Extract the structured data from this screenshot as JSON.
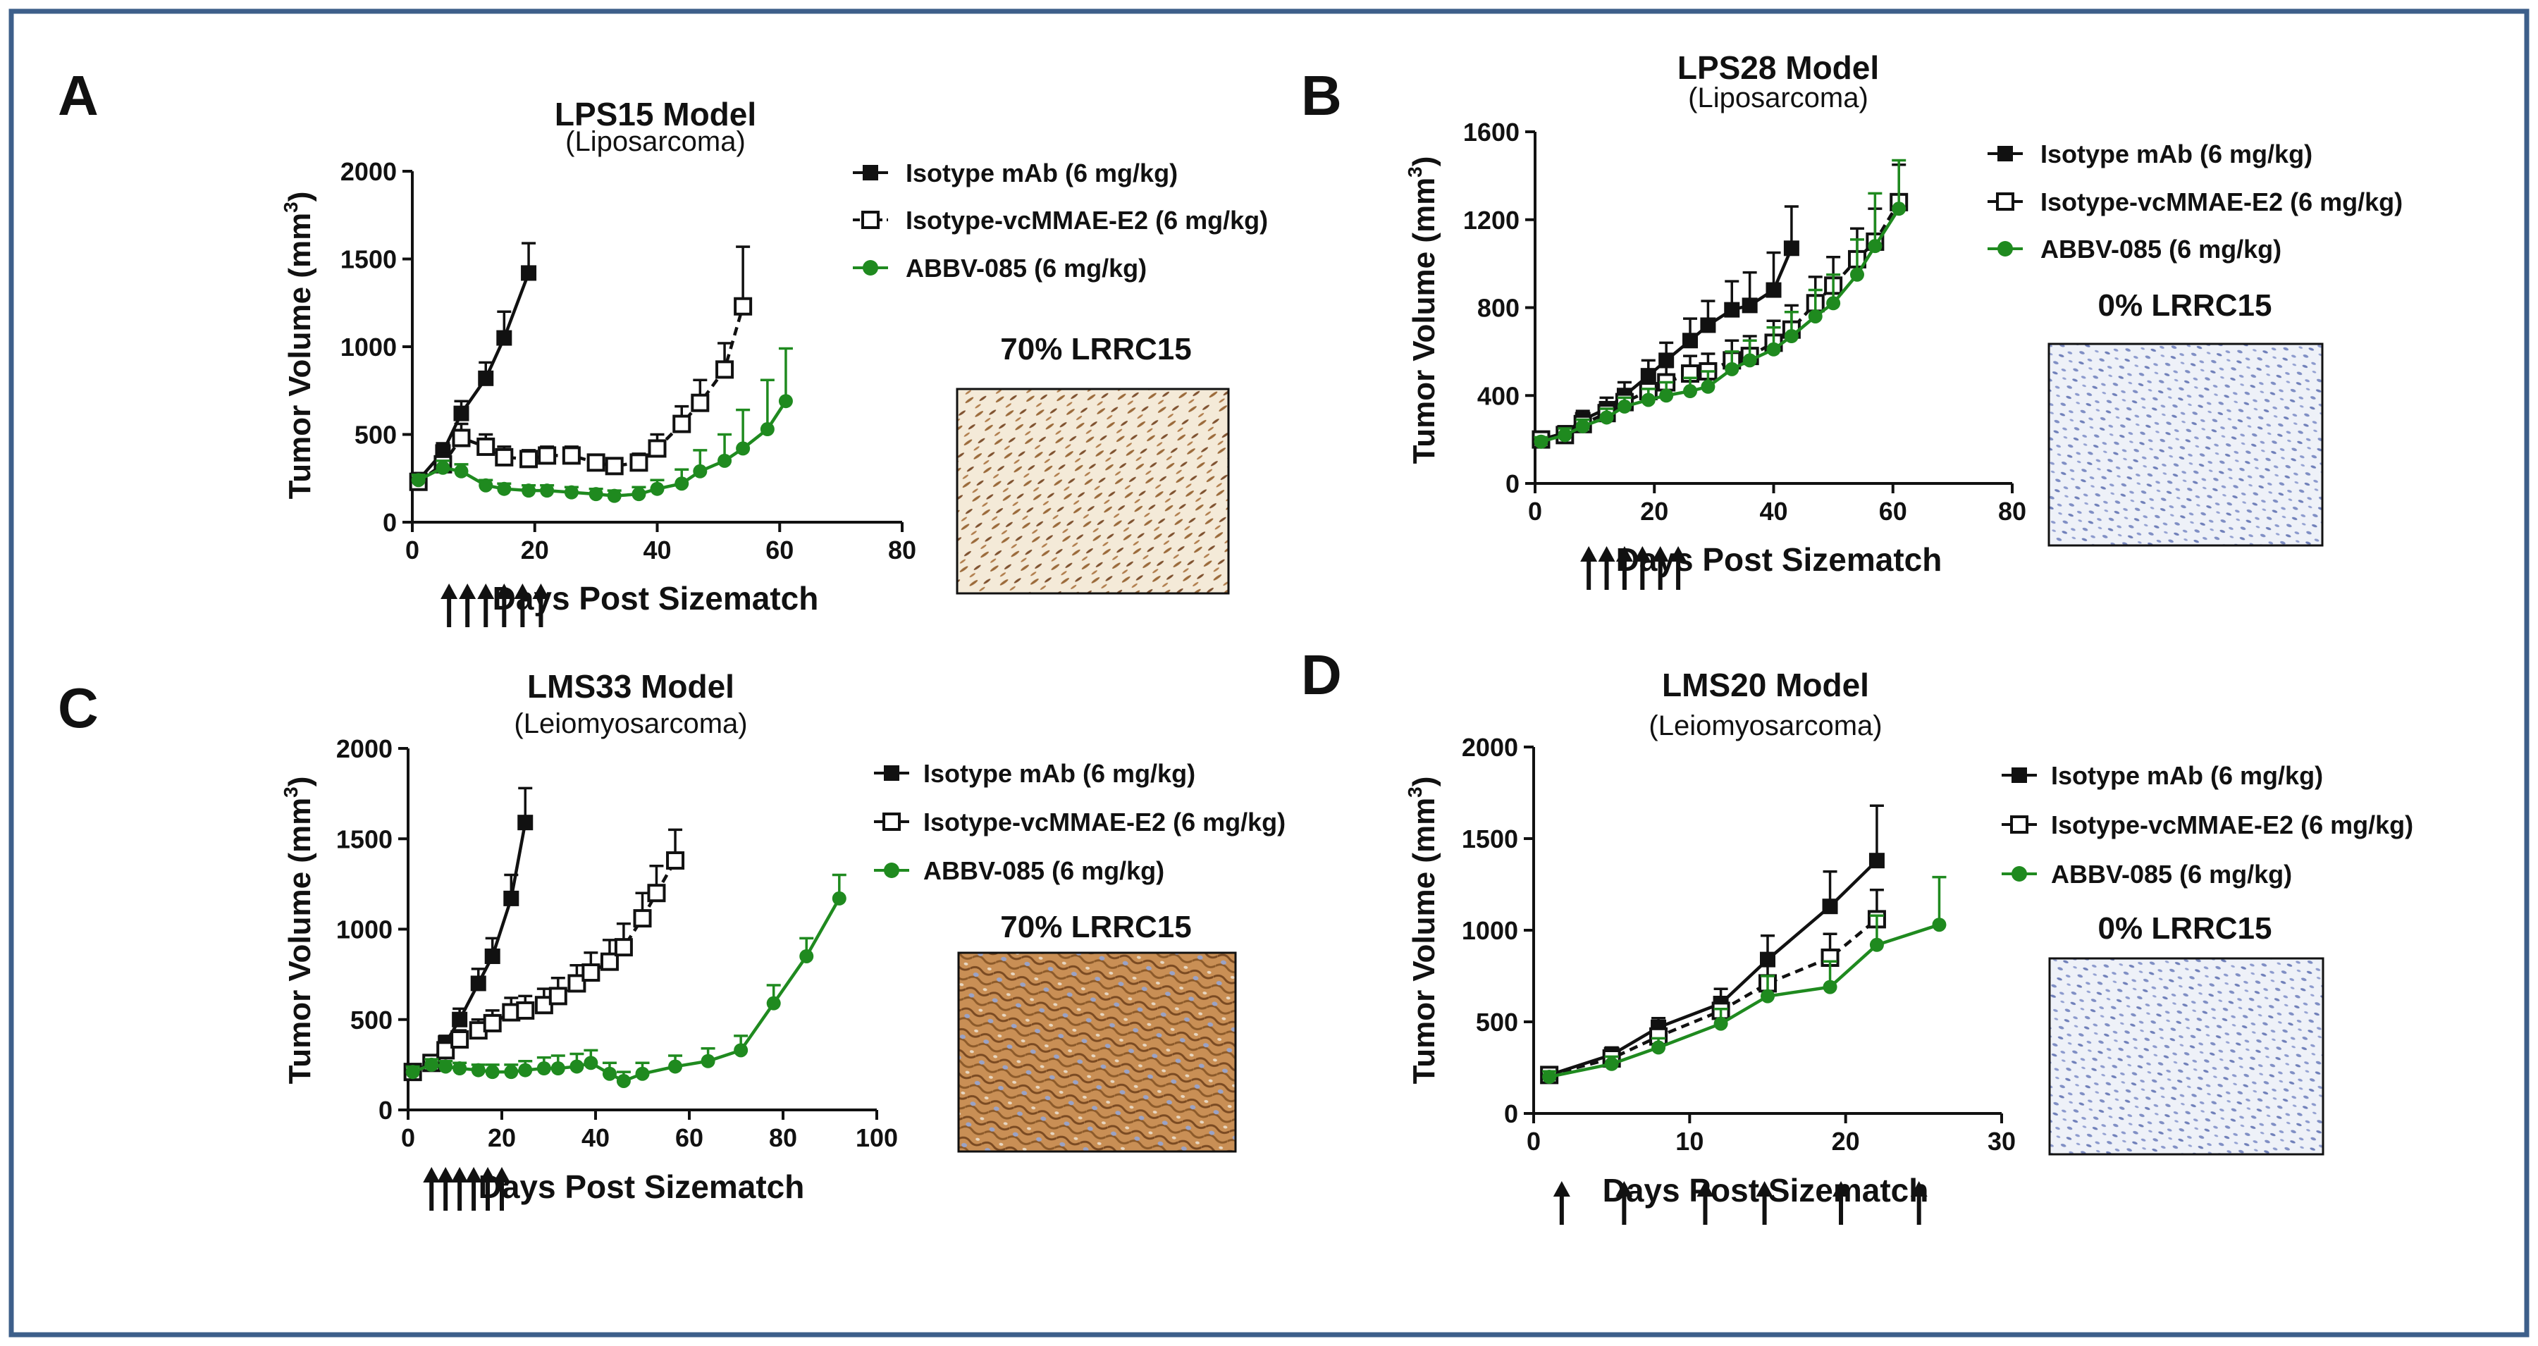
{
  "colors": {
    "black": "#111111",
    "green": "#1f8a1f",
    "frame": "#3d5f8a"
  },
  "legend_labels": {
    "iso_mab": "Isotype mAb (6 mg/kg)",
    "iso_vc": "Isotype-vcMMAE-E2 (6 mg/kg)",
    "abbv": "ABBV-085 (6 mg/kg)"
  },
  "chart_data": [
    {
      "panel": "A",
      "type": "line",
      "title": "LPS15 Model",
      "subtitle": "(Liposarcoma)",
      "xlabel": "Days Post Sizematch",
      "ylabel": "Tumor Volume (mm3)",
      "xlim": [
        0,
        80
      ],
      "ylim": [
        0,
        2000
      ],
      "xticks": [
        0,
        20,
        40,
        60,
        80
      ],
      "yticks": [
        0,
        500,
        1000,
        1500,
        2000
      ],
      "ihc_label": "70% LRRC15",
      "ihc_style": "brown-streaks",
      "dosing_days": [
        6,
        9,
        12,
        15,
        18,
        21
      ],
      "series": [
        {
          "name": "Isotype mAb (6 mg/kg)",
          "marker": "square-filled",
          "color": "#111111",
          "dash": false,
          "x": [
            1,
            5,
            8,
            12,
            15,
            19
          ],
          "y": [
            240,
            400,
            620,
            820,
            1050,
            1420
          ],
          "err": [
            40,
            50,
            70,
            90,
            150,
            170
          ]
        },
        {
          "name": "Isotype-vcMMAE-E2 (6 mg/kg)",
          "marker": "square-open",
          "color": "#111111",
          "dash": true,
          "x": [
            1,
            5,
            8,
            12,
            15,
            19,
            22,
            26,
            30,
            33,
            37,
            40,
            44,
            47,
            51,
            54
          ],
          "y": [
            230,
            330,
            480,
            430,
            370,
            360,
            380,
            380,
            340,
            320,
            340,
            420,
            560,
            680,
            870,
            1230
          ],
          "err": [
            40,
            60,
            80,
            70,
            60,
            50,
            50,
            50,
            40,
            40,
            50,
            80,
            100,
            130,
            150,
            340
          ]
        },
        {
          "name": "ABBV-085 (6 mg/kg)",
          "marker": "circle-filled",
          "color": "#1f8a1f",
          "dash": false,
          "x": [
            1,
            5,
            8,
            12,
            15,
            19,
            22,
            26,
            30,
            33,
            37,
            40,
            44,
            47,
            51,
            54,
            58,
            61
          ],
          "y": [
            240,
            310,
            290,
            210,
            190,
            180,
            180,
            170,
            160,
            150,
            160,
            190,
            220,
            290,
            350,
            420,
            530,
            690
          ],
          "err": [
            30,
            40,
            40,
            30,
            30,
            30,
            30,
            30,
            30,
            30,
            40,
            50,
            80,
            120,
            150,
            220,
            280,
            300
          ]
        }
      ]
    },
    {
      "panel": "B",
      "type": "line",
      "title": "LPS28 Model",
      "subtitle": "(Liposarcoma)",
      "xlabel": "Days Post Sizematch",
      "ylabel": "Tumor Volume (mm3)",
      "xlim": [
        0,
        80
      ],
      "ylim": [
        0,
        1600
      ],
      "xticks": [
        0,
        20,
        40,
        60,
        80
      ],
      "yticks": [
        0,
        400,
        800,
        1200,
        1600
      ],
      "ihc_label": "0% LRRC15",
      "ihc_style": "blue-nuclei",
      "dosing_days": [
        9,
        12,
        15,
        18,
        21,
        24
      ],
      "series": [
        {
          "name": "Isotype mAb (6 mg/kg)",
          "marker": "square-filled",
          "color": "#111111",
          "dash": false,
          "x": [
            1,
            5,
            8,
            12,
            15,
            19,
            22,
            26,
            29,
            33,
            36,
            40,
            43
          ],
          "y": [
            200,
            230,
            290,
            340,
            400,
            490,
            560,
            650,
            720,
            790,
            810,
            880,
            1070
          ],
          "err": [
            20,
            30,
            40,
            50,
            60,
            70,
            80,
            100,
            110,
            130,
            150,
            170,
            190
          ]
        },
        {
          "name": "Isotype-vcMMAE-E2 (6 mg/kg)",
          "marker": "square-open",
          "color": "#111111",
          "dash": true,
          "x": [
            1,
            5,
            8,
            12,
            15,
            19,
            22,
            26,
            29,
            33,
            36,
            40,
            43,
            47,
            50,
            54,
            57,
            61
          ],
          "y": [
            200,
            220,
            270,
            320,
            370,
            420,
            460,
            500,
            510,
            560,
            580,
            640,
            700,
            820,
            900,
            1020,
            1100,
            1280
          ],
          "err": [
            20,
            30,
            30,
            40,
            50,
            60,
            70,
            80,
            80,
            90,
            90,
            100,
            110,
            120,
            130,
            140,
            150,
            170
          ]
        },
        {
          "name": "ABBV-085 (6 mg/kg)",
          "marker": "circle-filled",
          "color": "#1f8a1f",
          "dash": false,
          "x": [
            1,
            5,
            8,
            12,
            15,
            19,
            22,
            26,
            29,
            33,
            36,
            40,
            43,
            47,
            50,
            54,
            57,
            61
          ],
          "y": [
            190,
            220,
            260,
            300,
            350,
            380,
            400,
            420,
            440,
            520,
            560,
            610,
            670,
            760,
            820,
            950,
            1080,
            1250
          ],
          "err": [
            20,
            30,
            30,
            40,
            40,
            50,
            60,
            60,
            70,
            80,
            90,
            100,
            110,
            120,
            130,
            160,
            240,
            220
          ]
        }
      ]
    },
    {
      "panel": "C",
      "type": "line",
      "title": "LMS33 Model",
      "subtitle": "(Leiomyosarcoma)",
      "xlabel": "Days Post Sizematch",
      "ylabel": "Tumor Volume (mm3)",
      "xlim": [
        0,
        100
      ],
      "ylim": [
        0,
        2000
      ],
      "xticks": [
        0,
        20,
        40,
        60,
        80,
        100
      ],
      "yticks": [
        0,
        500,
        1000,
        1500,
        2000
      ],
      "ihc_label": "70% LRRC15",
      "ihc_style": "brown-membrane",
      "dosing_days": [
        5,
        8,
        11,
        14,
        17,
        20
      ],
      "series": [
        {
          "name": "Isotype mAb (6 mg/kg)",
          "marker": "square-filled",
          "color": "#111111",
          "dash": false,
          "x": [
            1,
            5,
            8,
            11,
            15,
            18,
            22,
            25
          ],
          "y": [
            210,
            260,
            370,
            500,
            700,
            850,
            1170,
            1590
          ],
          "err": [
            30,
            30,
            40,
            60,
            80,
            100,
            130,
            190
          ]
        },
        {
          "name": "Isotype-vcMMAE-E2 (6 mg/kg)",
          "marker": "square-open",
          "color": "#111111",
          "dash": true,
          "x": [
            1,
            5,
            8,
            11,
            15,
            18,
            22,
            25,
            29,
            32,
            36,
            39,
            43,
            46,
            50,
            53,
            57
          ],
          "y": [
            210,
            260,
            330,
            390,
            440,
            480,
            540,
            550,
            580,
            630,
            700,
            760,
            820,
            900,
            1060,
            1200,
            1380
          ],
          "err": [
            30,
            30,
            40,
            50,
            60,
            70,
            80,
            80,
            90,
            100,
            100,
            110,
            120,
            130,
            140,
            150,
            170
          ]
        },
        {
          "name": "ABBV-085 (6 mg/kg)",
          "marker": "circle-filled",
          "color": "#1f8a1f",
          "dash": false,
          "x": [
            1,
            5,
            8,
            11,
            15,
            18,
            22,
            25,
            29,
            32,
            36,
            39,
            43,
            46,
            50,
            57,
            64,
            71,
            78,
            85,
            92
          ],
          "y": [
            210,
            250,
            240,
            230,
            220,
            210,
            210,
            220,
            230,
            230,
            240,
            260,
            200,
            160,
            200,
            240,
            270,
            330,
            590,
            850,
            1170
          ],
          "err": [
            30,
            30,
            30,
            30,
            30,
            40,
            40,
            50,
            60,
            70,
            70,
            70,
            60,
            50,
            60,
            60,
            70,
            80,
            100,
            100,
            130
          ]
        }
      ]
    },
    {
      "panel": "D",
      "type": "line",
      "title": "LMS20 Model",
      "subtitle": "(Leiomyosarcoma)",
      "xlabel": "Days Post Sizematch",
      "ylabel": "Tumor Volume (mm3)",
      "xlim": [
        0,
        30
      ],
      "ylim": [
        0,
        2000
      ],
      "xticks": [
        0,
        10,
        20,
        30
      ],
      "yticks": [
        0,
        500,
        1000,
        1500,
        2000
      ],
      "ihc_label": "0% LRRC15",
      "ihc_style": "blue-nuclei",
      "dosing_days": [
        1.8,
        5.8,
        11,
        14.8,
        19.7,
        24.7
      ],
      "series": [
        {
          "name": "Isotype mAb (6 mg/kg)",
          "marker": "square-filled",
          "color": "#111111",
          "dash": false,
          "x": [
            1,
            5,
            8,
            12,
            15,
            19,
            22
          ],
          "y": [
            210,
            320,
            470,
            600,
            840,
            1130,
            1380
          ],
          "err": [
            30,
            40,
            50,
            80,
            130,
            190,
            300
          ]
        },
        {
          "name": "Isotype-vcMMAE-E2 (6 mg/kg)",
          "marker": "square-open",
          "color": "#111111",
          "dash": true,
          "x": [
            1,
            5,
            8,
            12,
            15,
            19,
            22
          ],
          "y": [
            210,
            300,
            420,
            560,
            710,
            850,
            1060
          ],
          "err": [
            30,
            40,
            50,
            70,
            100,
            130,
            160
          ]
        },
        {
          "name": "ABBV-085 (6 mg/kg)",
          "marker": "circle-filled",
          "color": "#1f8a1f",
          "dash": false,
          "x": [
            1,
            5,
            8,
            12,
            15,
            19,
            22,
            26
          ],
          "y": [
            200,
            270,
            360,
            490,
            640,
            690,
            920,
            1030
          ],
          "err": [
            30,
            40,
            50,
            80,
            110,
            140,
            160,
            260
          ]
        }
      ]
    }
  ]
}
